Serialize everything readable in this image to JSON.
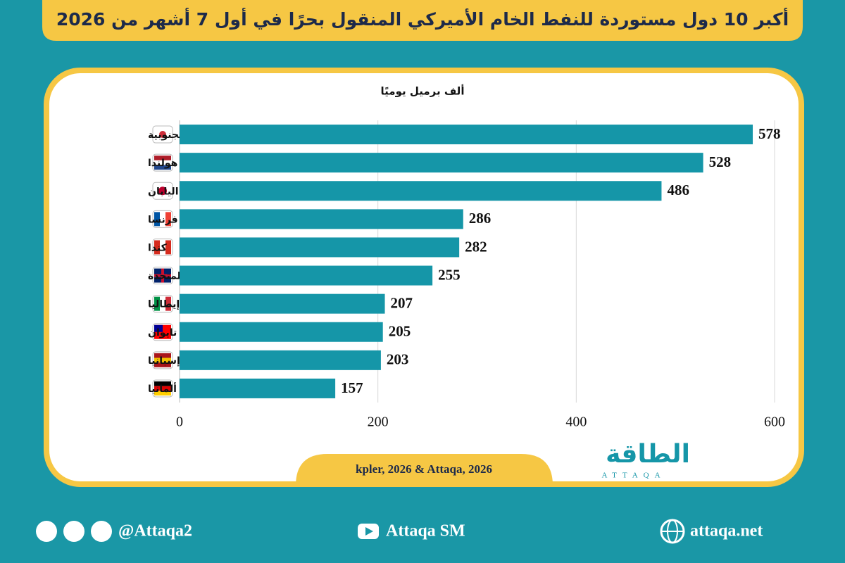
{
  "chart_data": {
    "type": "bar",
    "orientation": "horizontal",
    "title": "أكبر 10 دول مستوردة للنفط الخام الأميركي المنقول بحرًا في أول 7 أشهر من 2026",
    "subtitle": "ألف برميل يوميًا",
    "categories": [
      "كوريا الجنوبية",
      "هولندا",
      "اليابان",
      "فرنسا",
      "كندا",
      "المملكة المتحدة",
      "إيطاليا",
      "تايوان",
      "إسبانيا",
      "ألمانيا"
    ],
    "values": [
      578,
      528,
      486,
      286,
      282,
      255,
      207,
      205,
      203,
      157
    ],
    "color": "#1596a8",
    "xlim": [
      0,
      600
    ],
    "xticks": [
      0,
      200,
      400,
      600
    ],
    "grid": true,
    "source": "kpler, 2026 & Attaqa, 2026"
  },
  "logo": {
    "name": "الطاقة",
    "latin": "ATTAQA"
  },
  "footer": {
    "social": "@Attaqa2",
    "youtube": "Attaqa SM",
    "website": "attaqa.net"
  }
}
